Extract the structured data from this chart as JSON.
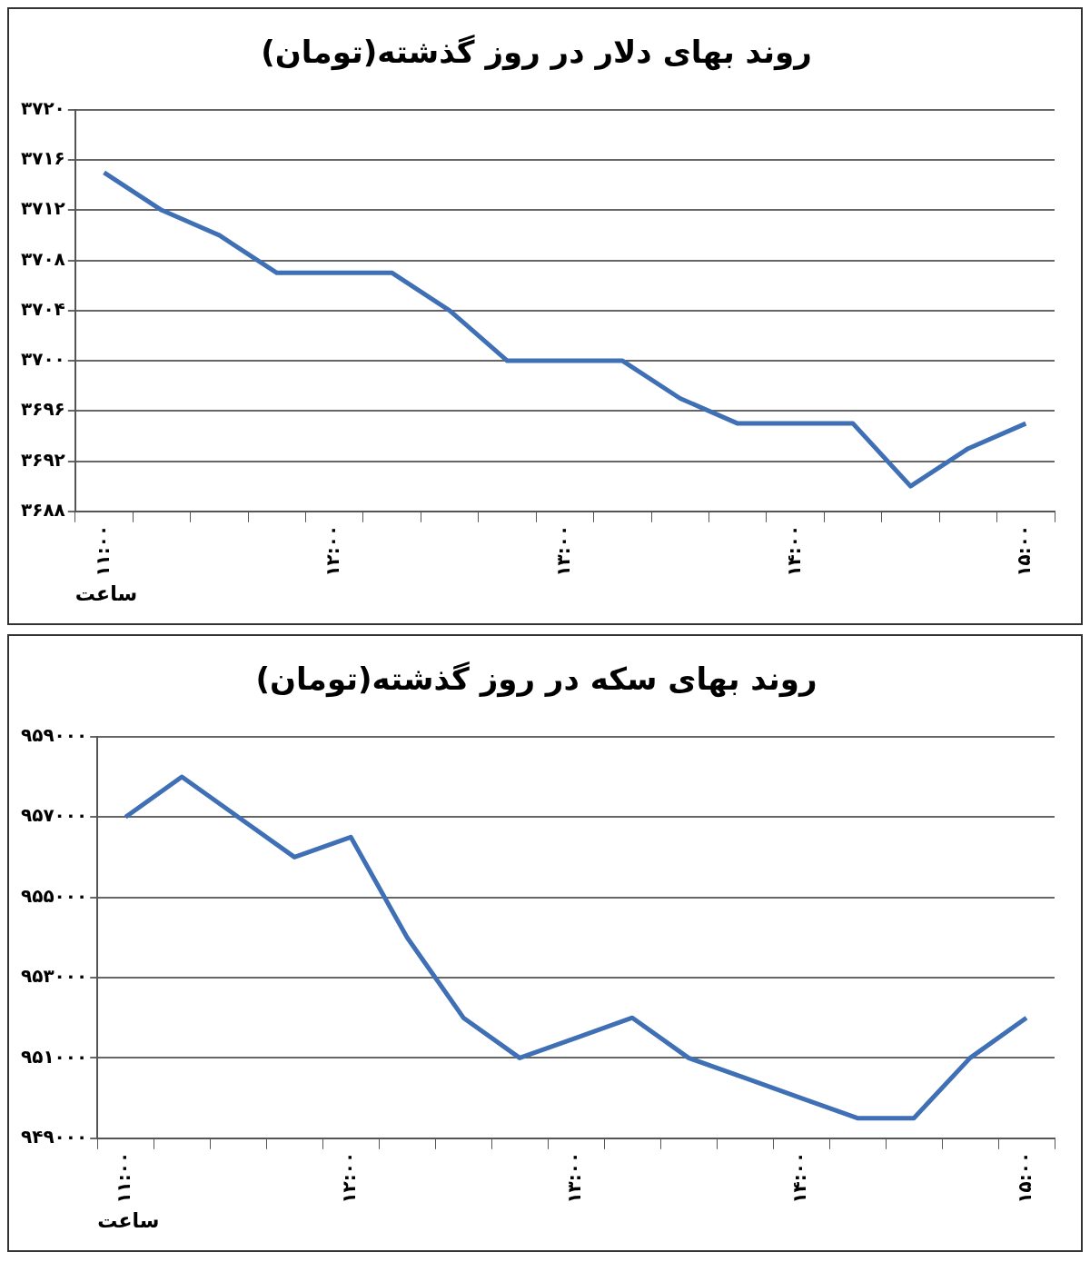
{
  "chart_data": [
    {
      "type": "line",
      "title": "روند بهای دلار در روز گذشته(تومان)",
      "xlabel": "ساعت",
      "categories": [
        "۱۱:۰۰",
        null,
        null,
        null,
        "۱۲:۰۰",
        null,
        null,
        null,
        "۱۳:۰۰",
        null,
        null,
        null,
        "۱۴:۰۰",
        null,
        null,
        null,
        "۱۵:۰۰"
      ],
      "series": [
        {
          "color": "#3f6fb5",
          "values": [
            3715,
            3712,
            3710,
            3707,
            3707,
            3707,
            3704,
            3700,
            3700,
            3700,
            3697,
            3695,
            3695,
            3695,
            3690,
            3693,
            3695
          ]
        }
      ],
      "ylim": [
        3688,
        3720
      ],
      "yticks": [
        {
          "value": 3688,
          "label": "۳۶۸۸"
        },
        {
          "value": 3692,
          "label": "۳۶۹۲"
        },
        {
          "value": 3696,
          "label": "۳۶۹۶"
        },
        {
          "value": 3700,
          "label": "۳۷۰۰"
        },
        {
          "value": 3704,
          "label": "۳۷۰۴"
        },
        {
          "value": 3708,
          "label": "۳۷۰۸"
        },
        {
          "value": 3712,
          "label": "۳۷۱۲"
        },
        {
          "value": 3716,
          "label": "۳۷۱۶"
        },
        {
          "value": 3720,
          "label": "۳۷۲۰"
        }
      ],
      "grid": "y",
      "legend": false,
      "marker": "none",
      "line_style": "solid"
    },
    {
      "type": "line",
      "title": "روند بهای سکه در روز گذشته(تومان)",
      "xlabel": "ساعت",
      "categories": [
        "۱۱:۰۰",
        null,
        null,
        null,
        "۱۲:۰۰",
        null,
        null,
        null,
        "۱۳:۰۰",
        null,
        null,
        null,
        "۱۴:۰۰",
        null,
        null,
        null,
        "۱۵:۰۰"
      ],
      "series": [
        {
          "color": "#3f6fb5",
          "values": [
            957000,
            958000,
            957000,
            956000,
            956500,
            954000,
            952000,
            951000,
            951500,
            952000,
            951000,
            950500,
            950000,
            949500,
            949500,
            951000,
            952000
          ]
        }
      ],
      "ylim": [
        949000,
        959000
      ],
      "yticks": [
        {
          "value": 949000,
          "label": "۹۴۹۰۰۰"
        },
        {
          "value": 951000,
          "label": "۹۵۱۰۰۰"
        },
        {
          "value": 953000,
          "label": "۹۵۳۰۰۰"
        },
        {
          "value": 955000,
          "label": "۹۵۵۰۰۰"
        },
        {
          "value": 957000,
          "label": "۹۵۷۰۰۰"
        },
        {
          "value": 959000,
          "label": "۹۵۹۰۰۰"
        }
      ],
      "grid": "y",
      "legend": false,
      "marker": "none",
      "line_style": "solid"
    }
  ]
}
